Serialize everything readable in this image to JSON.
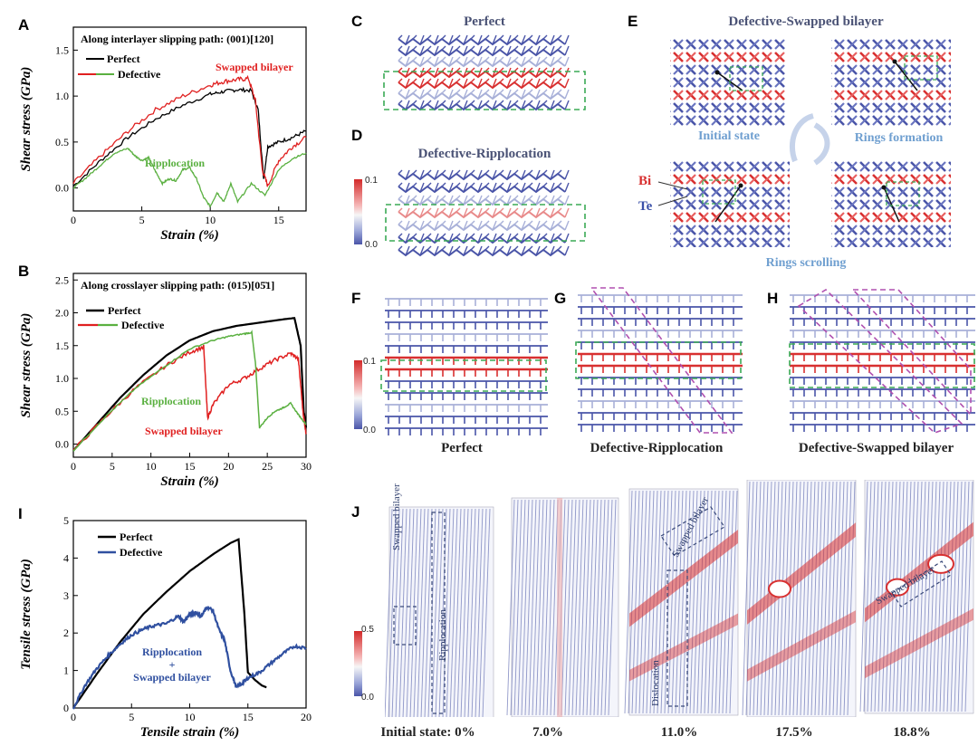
{
  "charts": {
    "A": {
      "panel_label": "A",
      "title": "Along interlayer slipping path: (001)[120]",
      "xlabel": "Strain (%)",
      "ylabel": "Shear stress (GPa)",
      "legend": {
        "perfect": "Perfect",
        "defective": "Defective"
      },
      "annotations": {
        "swapped": "Swapped bilayer",
        "ripplocation": "Ripplocation"
      }
    },
    "B": {
      "panel_label": "B",
      "title": "Along crosslayer slipping path: (015)[05̄1]",
      "xlabel": "Strain (%)",
      "ylabel": "Shear stress (GPa)",
      "legend": {
        "perfect": "Perfect",
        "defective": "Defective"
      },
      "annotations": {
        "ripplocation": "Ripplocation",
        "swapped": "Swapped bilayer"
      }
    },
    "I": {
      "panel_label": "I",
      "xlabel": "Tensile strain (%)",
      "ylabel": "Tensile stress (GPa)",
      "legend": {
        "perfect": "Perfect",
        "defective": "Defective"
      },
      "annotations": {
        "line1": "Ripplocation",
        "line2": "+",
        "line3": "Swapped bilayer"
      }
    }
  },
  "chart_data": [
    {
      "type": "line",
      "title": "Along interlayer slipping path: (001)[120]",
      "xlabel": "Strain (%)",
      "ylabel": "Shear stress (GPa)",
      "xlim": [
        0,
        17
      ],
      "ylim": [
        -0.25,
        1.75
      ],
      "xticks": [
        0,
        5,
        10,
        15
      ],
      "yticks": [
        0.0,
        0.5,
        1.0,
        1.5
      ],
      "series": [
        {
          "name": "Perfect",
          "color": "#000000",
          "x": [
            0,
            2,
            4,
            6,
            8,
            10,
            11,
            12,
            13,
            13.5,
            13.9,
            14.2,
            15,
            16,
            17
          ],
          "y": [
            0.02,
            0.3,
            0.55,
            0.75,
            0.9,
            1.02,
            1.05,
            1.07,
            1.06,
            0.85,
            0.1,
            0.45,
            0.5,
            0.55,
            0.62
          ]
        },
        {
          "name": "Swapped bilayer",
          "color": "#e02020",
          "x": [
            0,
            2,
            4,
            6,
            8,
            10,
            11,
            12,
            12.8,
            13.3,
            13.8,
            14.2,
            15,
            16,
            17
          ],
          "y": [
            0.05,
            0.35,
            0.62,
            0.85,
            1.0,
            1.12,
            1.16,
            1.18,
            1.19,
            0.95,
            0.2,
            0.02,
            0.3,
            0.45,
            0.55
          ]
        },
        {
          "name": "Ripplocation",
          "color": "#5ab040",
          "x": [
            0,
            1,
            2,
            3,
            4,
            4.5,
            5,
            5.5,
            6,
            6.5,
            7,
            7.5,
            8,
            8.5,
            9,
            9.5,
            10,
            10.5,
            11,
            11.5,
            12,
            13,
            14,
            15,
            16,
            17
          ],
          "y": [
            0.0,
            0.12,
            0.25,
            0.38,
            0.43,
            0.35,
            0.3,
            0.33,
            0.18,
            0.05,
            0.1,
            0.08,
            0.2,
            0.22,
            0.1,
            -0.1,
            -0.2,
            -0.05,
            -0.15,
            0.05,
            -0.15,
            0.05,
            -0.08,
            0.2,
            0.32,
            0.38
          ]
        }
      ],
      "legend": [
        "Perfect",
        "Defective"
      ]
    },
    {
      "type": "line",
      "title": "Along crosslayer slipping path: (015)[05̄1]",
      "xlabel": "Strain (%)",
      "ylabel": "Shear stress (GPa)",
      "xlim": [
        0,
        30
      ],
      "ylim": [
        -0.2,
        2.6
      ],
      "xticks": [
        0,
        5,
        10,
        15,
        20,
        25,
        30
      ],
      "yticks": [
        0.0,
        0.5,
        1.0,
        1.5,
        2.0,
        2.5
      ],
      "series": [
        {
          "name": "Perfect",
          "color": "#000000",
          "x": [
            0,
            3,
            6,
            9,
            12,
            15,
            18,
            21,
            24,
            27,
            28.5,
            29.3,
            29.7,
            30
          ],
          "y": [
            -0.1,
            0.3,
            0.7,
            1.05,
            1.35,
            1.58,
            1.72,
            1.8,
            1.85,
            1.9,
            1.92,
            1.5,
            0.5,
            0.25
          ]
        },
        {
          "name": "Swapped bilayer",
          "color": "#e02020",
          "x": [
            0,
            4,
            8,
            12,
            15,
            16.8,
            17.3,
            18,
            20,
            22,
            24,
            26,
            28,
            29,
            29.6,
            30
          ],
          "y": [
            -0.1,
            0.4,
            0.85,
            1.2,
            1.4,
            1.48,
            0.4,
            0.6,
            0.9,
            1.0,
            1.15,
            1.28,
            1.38,
            1.3,
            0.5,
            0.15
          ]
        },
        {
          "name": "Ripplocation",
          "color": "#5ab040",
          "x": [
            0,
            4,
            8,
            12,
            15,
            18,
            20,
            22,
            23,
            23.5,
            24,
            25,
            26,
            27,
            28,
            29,
            30
          ],
          "y": [
            -0.1,
            0.4,
            0.85,
            1.2,
            1.45,
            1.58,
            1.64,
            1.68,
            1.7,
            1.2,
            0.25,
            0.4,
            0.5,
            0.55,
            0.62,
            0.45,
            0.3
          ]
        }
      ],
      "legend": [
        "Perfect",
        "Defective"
      ]
    },
    {
      "type": "line",
      "xlabel": "Tensile strain (%)",
      "ylabel": "Tensile stress (GPa)",
      "xlim": [
        0,
        20
      ],
      "ylim": [
        0,
        5
      ],
      "xticks": [
        0,
        5,
        10,
        15,
        20
      ],
      "yticks": [
        0,
        1,
        2,
        3,
        4,
        5
      ],
      "series": [
        {
          "name": "Perfect",
          "color": "#000000",
          "x": [
            0,
            2,
            4,
            6,
            8,
            10,
            12,
            13.5,
            14.2,
            14.7,
            15,
            15.6,
            16.2,
            16.6
          ],
          "y": [
            0,
            0.9,
            1.75,
            2.5,
            3.1,
            3.65,
            4.1,
            4.4,
            4.5,
            2.5,
            0.95,
            0.75,
            0.6,
            0.55
          ]
        },
        {
          "name": "Ripplocation + Swapped bilayer",
          "color": "#3050a0",
          "x": [
            0,
            1,
            2,
            3,
            4,
            5,
            6,
            7,
            8,
            9,
            9.5,
            10,
            10.5,
            11,
            11.5,
            12,
            12.5,
            13,
            13.5,
            14,
            14.5,
            15,
            16,
            17,
            18,
            19,
            20
          ],
          "y": [
            0,
            0.6,
            1.05,
            1.4,
            1.7,
            1.95,
            2.1,
            2.2,
            2.25,
            2.45,
            2.3,
            2.5,
            2.55,
            2.45,
            2.7,
            2.6,
            2.1,
            1.8,
            1.0,
            0.55,
            0.65,
            0.8,
            0.95,
            1.2,
            1.45,
            1.65,
            1.6
          ]
        }
      ],
      "legend": [
        "Perfect",
        "Defective"
      ]
    }
  ],
  "panels": {
    "C": {
      "label": "C",
      "title": "Perfect"
    },
    "D": {
      "label": "D",
      "title": "Defective-Ripplocation"
    },
    "E": {
      "label": "E",
      "title": "Defective-Swapped bilayer",
      "sub1": "Initial state",
      "sub2": "Rings formation",
      "sub3": "Rings scrolling",
      "bi": "Bi",
      "te": "Te"
    },
    "F": {
      "label": "F",
      "caption": "Perfect"
    },
    "G": {
      "label": "G",
      "caption": "Defective-Ripplocation"
    },
    "H": {
      "label": "H",
      "caption": "Defective-Swapped bilayer"
    },
    "J": {
      "label": "J",
      "captions": [
        "Initial state: 0%",
        "7.0%",
        "11.0%",
        "17.5%",
        "18.8%"
      ],
      "annot_swapped": "Swapped bilayer",
      "annot_ripplocation": "Ripplocation",
      "annot_dislocation": "Dislocation"
    }
  },
  "colorbars": {
    "cd": {
      "max": "0.1",
      "min": "0.0"
    },
    "fh": {
      "max": "0.1",
      "min": "0.0"
    },
    "j": {
      "max": "0.5",
      "min": "0.0"
    }
  },
  "colors": {
    "perfect": "#000000",
    "swapped": "#e02020",
    "ripplocation": "#5ab040",
    "defective_tensile": "#3050a0",
    "title_text": "#4a5275",
    "sub_text": "#6f9fd0",
    "lattice_blue": "#4a55a8",
    "lattice_red": "#d83030",
    "dashed_green": "#3aaa55",
    "dashed_purple": "#b050b0"
  }
}
